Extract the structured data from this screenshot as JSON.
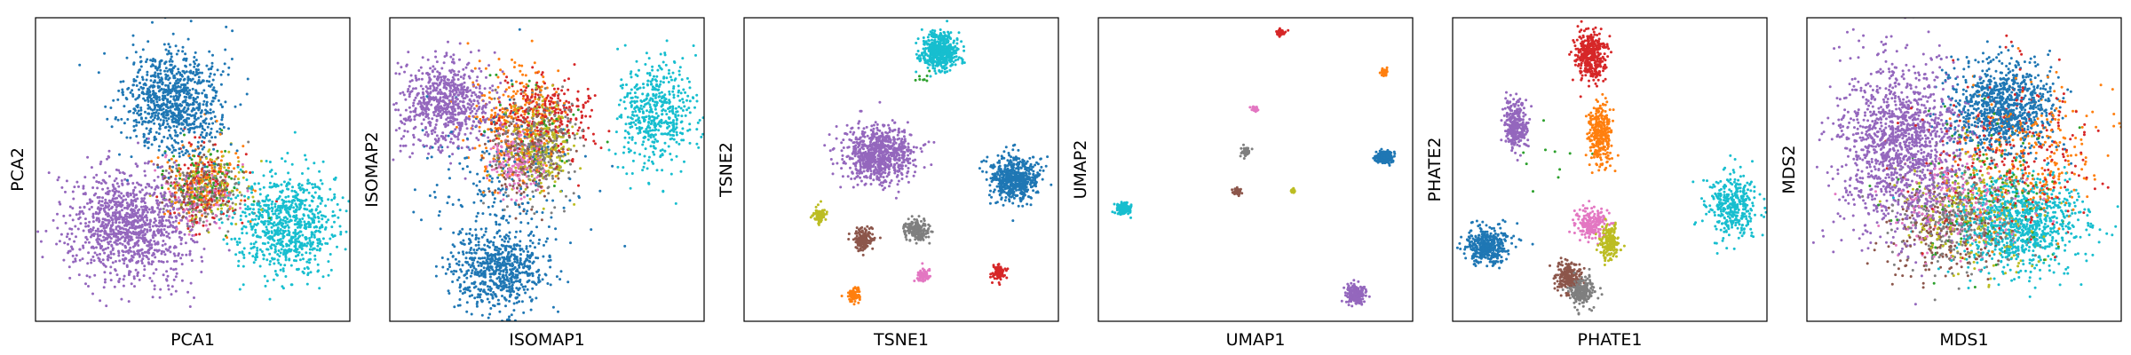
{
  "palette": {
    "blue": "#1f77b4",
    "orange": "#ff7f0e",
    "green": "#2ca02c",
    "red": "#d62728",
    "purple": "#9467bd",
    "brown": "#8c564b",
    "pink": "#e377c2",
    "gray": "#7f7f7f",
    "olive": "#bcbd22",
    "cyan": "#17becf"
  },
  "chart_data": [
    {
      "type": "scatter",
      "xlabel": "PCA1",
      "ylabel": "PCA2",
      "xlim": [
        0,
        1
      ],
      "ylim": [
        0,
        1
      ],
      "show_ticks": false,
      "grid": false,
      "clusters": [
        {
          "color": "blue",
          "cx": 0.44,
          "cy": 0.72,
          "sx": 0.075,
          "sy": 0.085,
          "n": 900
        },
        {
          "color": "purple",
          "cx": 0.3,
          "cy": 0.32,
          "sx": 0.095,
          "sy": 0.095,
          "n": 1100
        },
        {
          "color": "cyan",
          "cx": 0.8,
          "cy": 0.32,
          "sx": 0.085,
          "sy": 0.08,
          "n": 800
        },
        {
          "color": "orange",
          "cx": 0.53,
          "cy": 0.46,
          "sx": 0.06,
          "sy": 0.07,
          "n": 140
        },
        {
          "color": "red",
          "cx": 0.53,
          "cy": 0.44,
          "sx": 0.06,
          "sy": 0.07,
          "n": 120
        },
        {
          "color": "gray",
          "cx": 0.54,
          "cy": 0.42,
          "sx": 0.06,
          "sy": 0.06,
          "n": 130
        },
        {
          "color": "green",
          "cx": 0.54,
          "cy": 0.45,
          "sx": 0.06,
          "sy": 0.06,
          "n": 90
        },
        {
          "color": "brown",
          "cx": 0.53,
          "cy": 0.43,
          "sx": 0.06,
          "sy": 0.06,
          "n": 100
        },
        {
          "color": "pink",
          "cx": 0.52,
          "cy": 0.42,
          "sx": 0.06,
          "sy": 0.06,
          "n": 100
        },
        {
          "color": "olive",
          "cx": 0.55,
          "cy": 0.44,
          "sx": 0.06,
          "sy": 0.06,
          "n": 110
        }
      ]
    },
    {
      "type": "scatter",
      "xlabel": "ISOMAP1",
      "ylabel": "ISOMAP2",
      "xlim": [
        0,
        1
      ],
      "ylim": [
        0,
        1
      ],
      "show_ticks": false,
      "grid": false,
      "clusters": [
        {
          "color": "purple",
          "cx": 0.18,
          "cy": 0.72,
          "sx": 0.07,
          "sy": 0.07,
          "n": 700
        },
        {
          "color": "cyan",
          "cx": 0.85,
          "cy": 0.68,
          "sx": 0.06,
          "sy": 0.09,
          "n": 500
        },
        {
          "color": "blue",
          "cx": 0.35,
          "cy": 0.17,
          "sx": 0.07,
          "sy": 0.07,
          "n": 650
        },
        {
          "color": "blue",
          "cx": 0.35,
          "cy": 0.42,
          "sx": 0.12,
          "sy": 0.15,
          "n": 220
        },
        {
          "color": "orange",
          "cx": 0.4,
          "cy": 0.66,
          "sx": 0.08,
          "sy": 0.09,
          "n": 260
        },
        {
          "color": "red",
          "cx": 0.5,
          "cy": 0.68,
          "sx": 0.08,
          "sy": 0.07,
          "n": 250
        },
        {
          "color": "gray",
          "cx": 0.47,
          "cy": 0.58,
          "sx": 0.06,
          "sy": 0.08,
          "n": 260
        },
        {
          "color": "olive",
          "cx": 0.48,
          "cy": 0.58,
          "sx": 0.05,
          "sy": 0.07,
          "n": 240
        },
        {
          "color": "pink",
          "cx": 0.4,
          "cy": 0.52,
          "sx": 0.04,
          "sy": 0.05,
          "n": 180
        },
        {
          "color": "brown",
          "cx": 0.43,
          "cy": 0.55,
          "sx": 0.06,
          "sy": 0.08,
          "n": 180
        },
        {
          "color": "green",
          "cx": 0.46,
          "cy": 0.62,
          "sx": 0.08,
          "sy": 0.1,
          "n": 40
        }
      ]
    },
    {
      "type": "scatter",
      "xlabel": "TSNE1",
      "ylabel": "TSNE2",
      "xlim": [
        0,
        1
      ],
      "ylim": [
        0,
        1
      ],
      "show_ticks": false,
      "grid": false,
      "clusters": [
        {
          "color": "cyan",
          "cx": 0.62,
          "cy": 0.89,
          "sx": 0.03,
          "sy": 0.03,
          "n": 500
        },
        {
          "color": "purple",
          "cx": 0.43,
          "cy": 0.55,
          "sx": 0.055,
          "sy": 0.045,
          "n": 800
        },
        {
          "color": "blue",
          "cx": 0.86,
          "cy": 0.47,
          "sx": 0.038,
          "sy": 0.036,
          "n": 600
        },
        {
          "color": "olive",
          "cx": 0.24,
          "cy": 0.35,
          "sx": 0.01,
          "sy": 0.012,
          "n": 90
        },
        {
          "color": "brown",
          "cx": 0.38,
          "cy": 0.27,
          "sx": 0.017,
          "sy": 0.018,
          "n": 180
        },
        {
          "color": "gray",
          "cx": 0.55,
          "cy": 0.3,
          "sx": 0.018,
          "sy": 0.018,
          "n": 200
        },
        {
          "color": "red",
          "cx": 0.81,
          "cy": 0.16,
          "sx": 0.011,
          "sy": 0.012,
          "n": 90
        },
        {
          "color": "orange",
          "cx": 0.35,
          "cy": 0.09,
          "sx": 0.01,
          "sy": 0.012,
          "n": 80
        },
        {
          "color": "pink",
          "cx": 0.57,
          "cy": 0.15,
          "sx": 0.01,
          "sy": 0.01,
          "n": 70
        },
        {
          "color": "green",
          "cx": 0.57,
          "cy": 0.8,
          "sx": 0.01,
          "sy": 0.01,
          "n": 8
        }
      ]
    },
    {
      "type": "scatter",
      "xlabel": "UMAP1",
      "ylabel": "UMAP2",
      "xlim": [
        0,
        1
      ],
      "ylim": [
        0,
        1
      ],
      "show_ticks": false,
      "grid": false,
      "clusters": [
        {
          "color": "red",
          "cx": 0.58,
          "cy": 0.95,
          "sx": 0.006,
          "sy": 0.006,
          "n": 60
        },
        {
          "color": "orange",
          "cx": 0.91,
          "cy": 0.82,
          "sx": 0.006,
          "sy": 0.006,
          "n": 50
        },
        {
          "color": "pink",
          "cx": 0.5,
          "cy": 0.7,
          "sx": 0.005,
          "sy": 0.005,
          "n": 30
        },
        {
          "color": "gray",
          "cx": 0.47,
          "cy": 0.56,
          "sx": 0.007,
          "sy": 0.008,
          "n": 50
        },
        {
          "color": "blue",
          "cx": 0.91,
          "cy": 0.54,
          "sx": 0.014,
          "sy": 0.01,
          "n": 200
        },
        {
          "color": "brown",
          "cx": 0.44,
          "cy": 0.43,
          "sx": 0.007,
          "sy": 0.007,
          "n": 40
        },
        {
          "color": "olive",
          "cx": 0.62,
          "cy": 0.43,
          "sx": 0.004,
          "sy": 0.004,
          "n": 25
        },
        {
          "color": "cyan",
          "cx": 0.08,
          "cy": 0.37,
          "sx": 0.012,
          "sy": 0.01,
          "n": 150
        },
        {
          "color": "purple",
          "cx": 0.82,
          "cy": 0.09,
          "sx": 0.016,
          "sy": 0.016,
          "n": 200
        }
      ]
    },
    {
      "type": "scatter",
      "xlabel": "PHATE1",
      "ylabel": "PHATE2",
      "xlim": [
        0,
        1
      ],
      "ylim": [
        0,
        1
      ],
      "show_ticks": false,
      "grid": false,
      "clusters": [
        {
          "color": "red",
          "cx": 0.44,
          "cy": 0.88,
          "sx": 0.025,
          "sy": 0.04,
          "n": 400
        },
        {
          "color": "purple",
          "cx": 0.2,
          "cy": 0.65,
          "sx": 0.018,
          "sy": 0.04,
          "n": 300
        },
        {
          "color": "orange",
          "cx": 0.47,
          "cy": 0.62,
          "sx": 0.018,
          "sy": 0.05,
          "n": 300
        },
        {
          "color": "cyan",
          "cx": 0.89,
          "cy": 0.38,
          "sx": 0.04,
          "sy": 0.05,
          "n": 350
        },
        {
          "color": "blue",
          "cx": 0.11,
          "cy": 0.25,
          "sx": 0.035,
          "sy": 0.03,
          "n": 380
        },
        {
          "color": "pink",
          "cx": 0.44,
          "cy": 0.32,
          "sx": 0.025,
          "sy": 0.025,
          "n": 200
        },
        {
          "color": "olive",
          "cx": 0.5,
          "cy": 0.26,
          "sx": 0.015,
          "sy": 0.03,
          "n": 200
        },
        {
          "color": "brown",
          "cx": 0.37,
          "cy": 0.15,
          "sx": 0.02,
          "sy": 0.025,
          "n": 220
        },
        {
          "color": "gray",
          "cx": 0.41,
          "cy": 0.1,
          "sx": 0.02,
          "sy": 0.025,
          "n": 220
        },
        {
          "color": "green",
          "cx": 0.3,
          "cy": 0.5,
          "sx": 0.05,
          "sy": 0.08,
          "n": 10
        }
      ]
    },
    {
      "type": "scatter",
      "xlabel": "MDS1",
      "ylabel": "MDS2",
      "xlim": [
        0,
        1
      ],
      "ylim": [
        0,
        1
      ],
      "show_ticks": false,
      "grid": false,
      "clusters": [
        {
          "color": "purple",
          "cx": 0.3,
          "cy": 0.58,
          "sx": 0.1,
          "sy": 0.14,
          "n": 1400
        },
        {
          "color": "blue",
          "cx": 0.62,
          "cy": 0.71,
          "sx": 0.08,
          "sy": 0.075,
          "n": 900
        },
        {
          "color": "cyan",
          "cx": 0.68,
          "cy": 0.32,
          "sx": 0.1,
          "sy": 0.08,
          "n": 900
        },
        {
          "color": "orange",
          "cx": 0.7,
          "cy": 0.55,
          "sx": 0.12,
          "sy": 0.12,
          "n": 280
        },
        {
          "color": "red",
          "cx": 0.65,
          "cy": 0.55,
          "sx": 0.14,
          "sy": 0.13,
          "n": 260
        },
        {
          "color": "gray",
          "cx": 0.5,
          "cy": 0.33,
          "sx": 0.11,
          "sy": 0.09,
          "n": 260
        },
        {
          "color": "olive",
          "cx": 0.52,
          "cy": 0.35,
          "sx": 0.11,
          "sy": 0.09,
          "n": 240
        },
        {
          "color": "brown",
          "cx": 0.45,
          "cy": 0.3,
          "sx": 0.1,
          "sy": 0.08,
          "n": 230
        },
        {
          "color": "pink",
          "cx": 0.48,
          "cy": 0.38,
          "sx": 0.1,
          "sy": 0.08,
          "n": 200
        },
        {
          "color": "green",
          "cx": 0.55,
          "cy": 0.45,
          "sx": 0.13,
          "sy": 0.13,
          "n": 140
        }
      ]
    }
  ]
}
